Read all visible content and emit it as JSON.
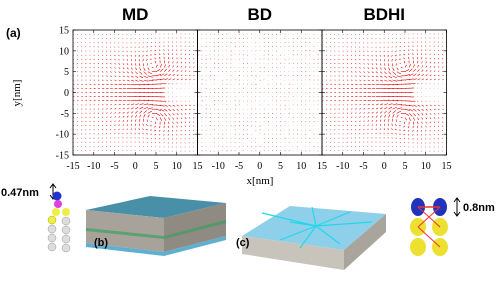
{
  "figure": {
    "panel_label": "(a)",
    "panels": [
      {
        "title": "MD"
      },
      {
        "title": "BD"
      },
      {
        "title": "BDHI"
      }
    ],
    "xlabel": "x[nm]",
    "ylabel": "y[nm]",
    "xlim": [
      -15,
      15
    ],
    "ylim": [
      -15,
      15
    ],
    "xticks": [
      -15,
      -10,
      -5,
      0,
      5,
      10,
      15
    ],
    "yticks": [
      -15,
      -10,
      -5,
      0,
      5,
      10,
      15
    ],
    "bottom": {
      "left_size": "0.47nm",
      "label_b": "(b)",
      "label_c": "(c)",
      "right_size": "0.8nm"
    }
  }
}
